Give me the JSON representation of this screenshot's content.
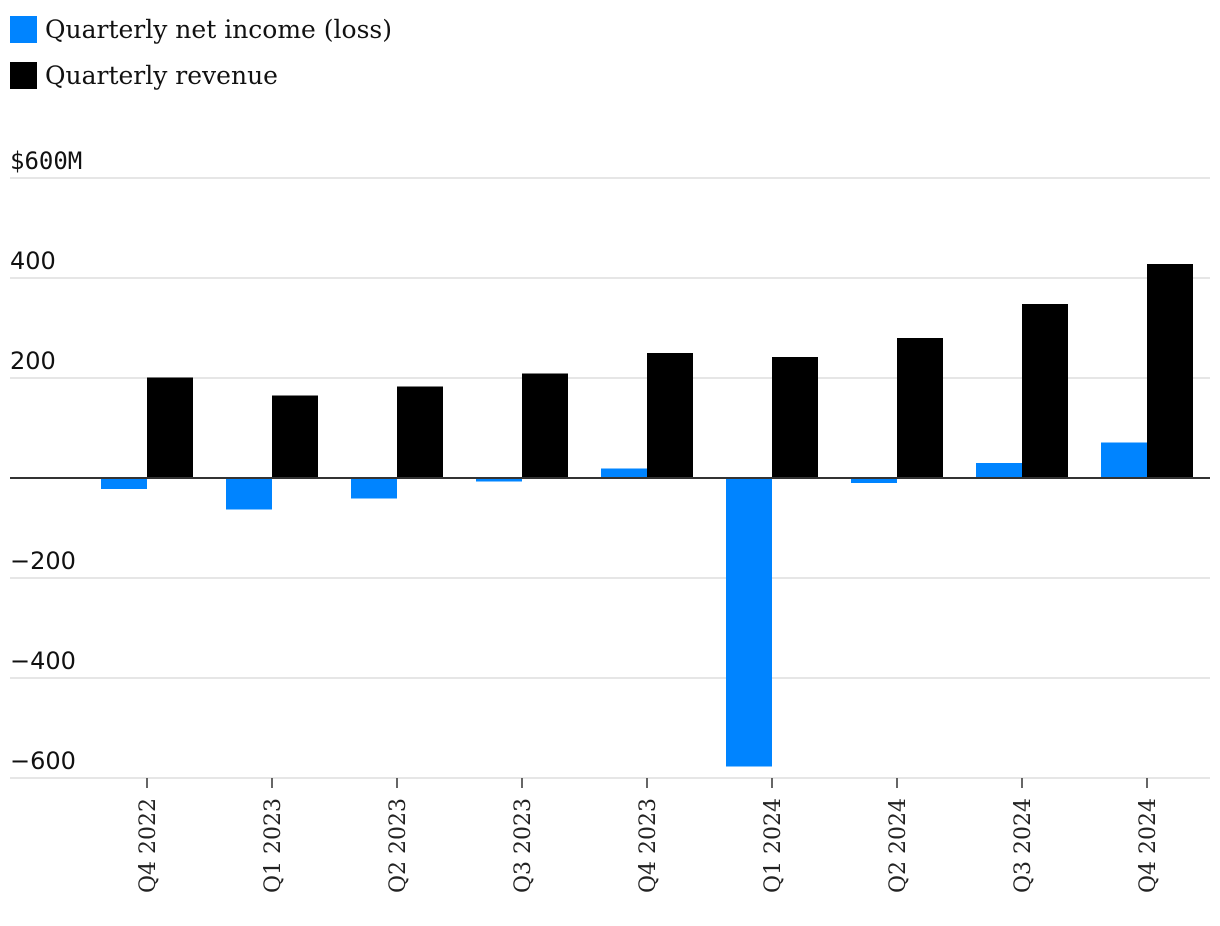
{
  "legend": {
    "net_income_label": "Quarterly net income (loss)",
    "revenue_label": "Quarterly revenue"
  },
  "colors": {
    "net_income": "#0084ff",
    "revenue": "#000000",
    "grid": "#dddddd",
    "zero_line": "#333333"
  },
  "chart_data": {
    "type": "bar",
    "categories": [
      "Q4 2022",
      "Q1 2023",
      "Q2 2023",
      "Q3 2023",
      "Q4 2023",
      "Q1 2024",
      "Q2 2024",
      "Q3 2024",
      "Q4 2024"
    ],
    "series": [
      {
        "name": "Quarterly net income (loss)",
        "values": [
          -22,
          -63,
          -41,
          -7,
          19,
          -577,
          -10,
          30,
          71
        ]
      },
      {
        "name": "Quarterly revenue",
        "values": [
          201,
          165,
          183,
          209,
          250,
          242,
          280,
          348,
          428
        ]
      }
    ],
    "y_ticks": [
      600,
      400,
      200,
      -200,
      -400,
      -600
    ],
    "y_tick_labels": [
      "$600M",
      "400",
      "200",
      "−200",
      "−400",
      "−600"
    ],
    "ylim": [
      -600,
      600
    ],
    "grid": true,
    "legend_position": "top-left",
    "title": "",
    "xlabel": "",
    "ylabel": ""
  }
}
